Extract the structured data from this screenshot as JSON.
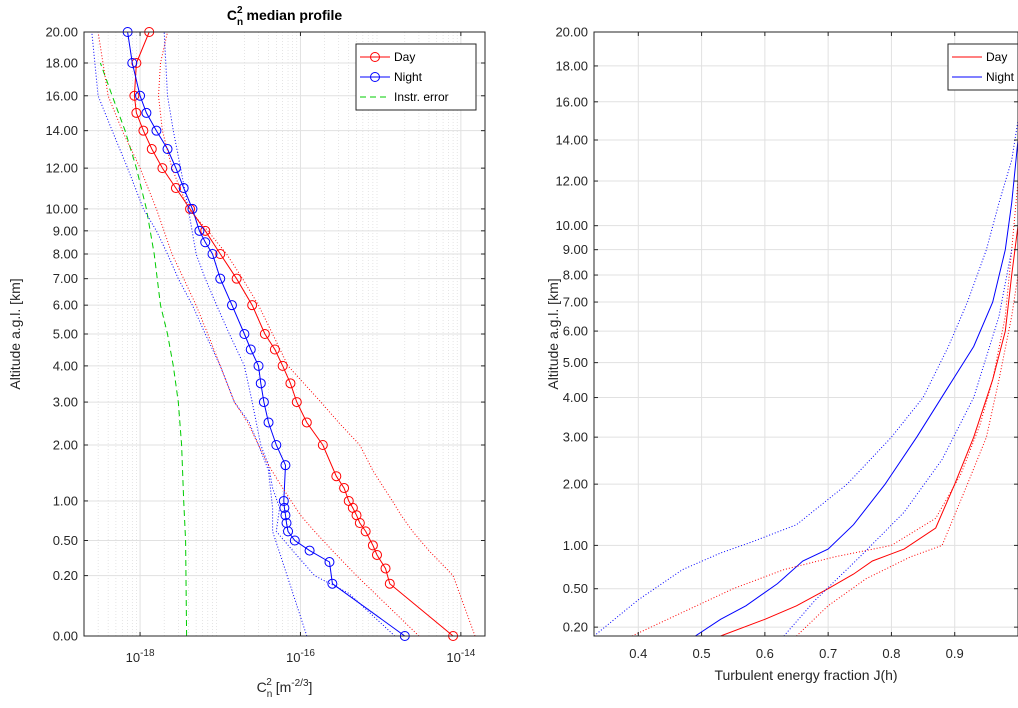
{
  "chart_data": [
    {
      "type": "line",
      "title": "C",
      "title_sub": "n",
      "title_sup": "2",
      "title_rest": "median profile",
      "xlabel": "C",
      "xlabel_sub": "n",
      "xlabel_sup": "2",
      "xlabel_rest": "[m",
      "xlabel_unit_sup": "-2/3",
      "xlabel_close": "]",
      "ylabel": "Altitude a.g.l. [km]",
      "xscale": "log",
      "yscale": "sqrt",
      "xlim": [
        2e-19,
        2e-14
      ],
      "ylim": [
        0,
        20
      ],
      "xticks": [
        1e-18,
        1e-16,
        1e-14
      ],
      "xtick_base": "10",
      "xtick_exps": [
        "-18",
        "-16",
        "-14"
      ],
      "yticks": [
        0,
        0.2,
        0.5,
        1,
        2,
        3,
        4,
        5,
        6,
        7,
        8,
        9,
        10,
        12,
        14,
        16,
        18,
        20
      ],
      "ytick_labels": [
        "0.00",
        "0.20",
        "0.50",
        "1.00",
        "2.00",
        "3.00",
        "4.00",
        "5.00",
        "6.00",
        "7.00",
        "8.00",
        "9.00",
        "10.00",
        "12.00",
        "14.00",
        "16.00",
        "18.00",
        "20.00"
      ],
      "grid": true,
      "legend": "top-right",
      "series": [
        {
          "name": "Day",
          "color": "#ff0000",
          "style": "solid",
          "marker": "circle",
          "x": [
            8e-15,
            1.3e-15,
            1.15e-15,
            9e-16,
            8e-16,
            6.5e-16,
            5.5e-16,
            5e-16,
            4.5e-16,
            4e-16,
            3.5e-16,
            2.8e-16,
            1.9e-16,
            1.2e-16,
            9e-17,
            7.5e-17,
            6e-17,
            4.8e-17,
            3.6e-17,
            2.5e-17,
            1.6e-17,
            1e-17,
            6.5e-18,
            4.2e-18,
            2.8e-18,
            1.9e-18,
            1.4e-18,
            1.1e-18,
            9e-19,
            8.5e-19,
            9e-19,
            1.3e-18
          ],
          "y": [
            0,
            0.15,
            0.25,
            0.36,
            0.45,
            0.6,
            0.7,
            0.8,
            0.9,
            1.0,
            1.2,
            1.4,
            2.0,
            2.5,
            3.0,
            3.5,
            4.0,
            4.5,
            5.0,
            6.0,
            7.0,
            8.0,
            9.0,
            10.0,
            11.0,
            12.0,
            13.0,
            14.0,
            15.0,
            16.0,
            18.0,
            20.0
          ]
        },
        {
          "name": "Night",
          "color": "#0000ff",
          "style": "solid",
          "marker": "circle",
          "x": [
            2e-15,
            2.5e-16,
            2.3e-16,
            1.3e-16,
            8.5e-17,
            7e-17,
            6.7e-17,
            6.5e-17,
            6.3e-17,
            6.2e-17,
            6.5e-17,
            5e-17,
            4e-17,
            3.5e-17,
            3.2e-17,
            3e-17,
            2.4e-17,
            2e-17,
            1.4e-17,
            1e-17,
            8e-18,
            6.5e-18,
            5.5e-18,
            4.5e-18,
            3.5e-18,
            2.8e-18,
            2.2e-18,
            1.6e-18,
            1.2e-18,
            1e-18,
            8e-19,
            7e-19
          ],
          "y": [
            0,
            0.15,
            0.3,
            0.4,
            0.5,
            0.6,
            0.7,
            0.8,
            0.9,
            1.0,
            1.6,
            2.0,
            2.5,
            3.0,
            3.5,
            4.0,
            4.5,
            5.0,
            6.0,
            7.0,
            8.0,
            8.5,
            9.0,
            10.0,
            11.0,
            12.0,
            13.0,
            14.0,
            15.0,
            16.0,
            18.0,
            20.0
          ]
        },
        {
          "name": "Instr. error",
          "color": "#00cc00",
          "style": "dashed",
          "marker": "none",
          "x": [
            3.8e-18,
            3.7e-18,
            3.5e-18,
            3.3e-18,
            3e-18,
            2.6e-18,
            2.2e-18,
            1.8e-18,
            1.5e-18,
            1.2e-18,
            9e-19,
            6.5e-19,
            4.5e-19,
            3.2e-19
          ],
          "y": [
            0,
            0.5,
            1,
            2,
            3,
            4,
            5,
            6,
            8,
            10,
            12,
            14,
            16,
            18
          ]
        },
        {
          "name": "",
          "color": "#ff0000",
          "style": "dotted",
          "marker": "none",
          "x": [
            1.5e-14,
            8e-15,
            4e-15,
            2.5e-15,
            1.8e-15,
            1.4e-15,
            1.1e-15,
            8e-16,
            5.5e-16,
            3e-16,
            1.8e-16,
            1.1e-16,
            7e-17,
            4.5e-17,
            3e-17,
            1.9e-17,
            1.2e-17,
            7e-18,
            4e-18,
            2.5e-18,
            1.9e-18,
            1.7e-18,
            1.8e-18,
            2.2e-18
          ],
          "y": [
            0,
            0.2,
            0.4,
            0.6,
            0.8,
            1.0,
            1.2,
            1.5,
            2.0,
            2.5,
            3.0,
            3.5,
            4.0,
            5.0,
            6.0,
            7.0,
            8.0,
            9.0,
            10.0,
            12.0,
            14.0,
            16.0,
            18.0,
            20.0
          ]
        },
        {
          "name": "",
          "color": "#ff0000",
          "style": "dotted",
          "marker": "none",
          "x": [
            3e-15,
            5e-16,
            2.5e-16,
            1.5e-16,
            1e-16,
            6e-17,
            4e-17,
            3e-17,
            2.2e-17,
            1.5e-17,
            1e-17,
            7e-18,
            5e-18,
            3.5e-18,
            2.5e-18,
            1.6e-18,
            1e-18,
            6e-19,
            4e-19,
            3e-19
          ],
          "y": [
            0,
            0.2,
            0.4,
            0.6,
            0.8,
            1.2,
            1.6,
            2.0,
            2.5,
            3.0,
            4.0,
            5.0,
            6.0,
            7.0,
            8.0,
            10.0,
            12.0,
            14.0,
            16.0,
            20.0
          ]
        },
        {
          "name": "",
          "color": "#0000ff",
          "style": "dotted",
          "marker": "none",
          "x": [
            1.5e-15,
            4e-16,
            1.5e-16,
            8e-17,
            5e-17,
            5.5e-17,
            4.5e-17,
            4e-17,
            3.2e-17,
            2.5e-17,
            2e-17,
            1.3e-17,
            9e-18,
            6.5e-18,
            5e-18,
            4e-18,
            3.2e-18,
            2.6e-18,
            2.2e-18,
            2e-18
          ],
          "y": [
            0,
            0.1,
            0.2,
            0.4,
            0.6,
            0.9,
            1.2,
            1.6,
            2.0,
            3.0,
            4.0,
            5.0,
            6.0,
            7.0,
            8.0,
            10.0,
            12.0,
            14.0,
            16.0,
            20.0
          ]
        },
        {
          "name": "",
          "color": "#0000ff",
          "style": "dotted",
          "marker": "none",
          "x": [
            1.2e-16,
            6e-17,
            4.5e-17,
            4.5e-17,
            4e-17,
            3e-17,
            2.3e-17,
            1.5e-17,
            1e-17,
            6.5e-18,
            4.5e-18,
            3e-18,
            2.2e-18,
            1.6e-18,
            1.1e-18,
            7e-19,
            4.5e-19,
            3e-19,
            2.5e-19
          ],
          "y": [
            0,
            0.3,
            0.6,
            0.9,
            1.5,
            2.0,
            2.5,
            3.0,
            4.0,
            5.0,
            6.0,
            7.0,
            8.0,
            9.0,
            10.0,
            12.0,
            14.0,
            16.0,
            20.0
          ]
        }
      ]
    },
    {
      "type": "line",
      "title": "",
      "xlabel": "Turbulent energy fraction J(h)",
      "ylabel": "Altitude a.g.l. [km]",
      "xscale": "linear",
      "yscale": "sqrt",
      "xlim": [
        0.33,
        1.0
      ],
      "ylim": [
        0.15,
        20
      ],
      "xticks": [
        0.4,
        0.5,
        0.6,
        0.7,
        0.8,
        0.9
      ],
      "xtick_labels": [
        "0.4",
        "0.5",
        "0.6",
        "0.7",
        "0.8",
        "0.9"
      ],
      "yticks": [
        0.2,
        0.5,
        1,
        2,
        3,
        4,
        5,
        6,
        7,
        8,
        9,
        10,
        12,
        14,
        16,
        18,
        20
      ],
      "ytick_labels": [
        "0.20",
        "0.50",
        "1.00",
        "2.00",
        "3.00",
        "4.00",
        "5.00",
        "6.00",
        "7.00",
        "8.00",
        "9.00",
        "10.00",
        "12.00",
        "14.00",
        "16.00",
        "18.00",
        "20.00"
      ],
      "grid": true,
      "legend": "top-right",
      "series": [
        {
          "name": "Day",
          "color": "#ff0000",
          "style": "solid",
          "x": [
            0.53,
            0.6,
            0.65,
            0.7,
            0.74,
            0.77,
            0.82,
            0.87,
            0.9,
            0.93,
            0.96,
            0.98,
            0.99,
            1.0
          ],
          "y": [
            0.15,
            0.25,
            0.35,
            0.5,
            0.65,
            0.8,
            0.95,
            1.25,
            2.0,
            3.0,
            4.5,
            6.0,
            8.0,
            10.0
          ]
        },
        {
          "name": "Night",
          "color": "#0000ff",
          "style": "solid",
          "x": [
            0.49,
            0.53,
            0.57,
            0.62,
            0.66,
            0.7,
            0.74,
            0.79,
            0.84,
            0.89,
            0.93,
            0.96,
            0.98,
            0.99,
            1.0
          ],
          "y": [
            0.15,
            0.25,
            0.35,
            0.55,
            0.8,
            0.95,
            1.3,
            2.0,
            3.0,
            4.3,
            5.5,
            7.0,
            9.0,
            11.0,
            14.0
          ]
        },
        {
          "name": "",
          "color": "#ff0000",
          "style": "dotted",
          "x": [
            0.39,
            0.47,
            0.55,
            0.63,
            0.71,
            0.8,
            0.87,
            0.91,
            0.94,
            0.96,
            0.98,
            0.99,
            1.0
          ],
          "y": [
            0.15,
            0.3,
            0.5,
            0.7,
            0.85,
            1.0,
            1.4,
            2.2,
            3.3,
            4.5,
            6.5,
            9.0,
            12.0
          ]
        },
        {
          "name": "",
          "color": "#ff0000",
          "style": "dotted",
          "x": [
            0.65,
            0.7,
            0.76,
            0.83,
            0.88,
            0.92,
            0.95,
            0.97,
            0.99,
            1.0
          ],
          "y": [
            0.15,
            0.35,
            0.6,
            0.85,
            1.0,
            2.0,
            3.0,
            4.5,
            6.5,
            8.0
          ]
        },
        {
          "name": "",
          "color": "#0000ff",
          "style": "dotted",
          "x": [
            0.33,
            0.4,
            0.47,
            0.53,
            0.58,
            0.65,
            0.73,
            0.8,
            0.85,
            0.89,
            0.92,
            0.95,
            0.97,
            0.99,
            1.0
          ],
          "y": [
            0.15,
            0.4,
            0.7,
            0.9,
            1.05,
            1.3,
            2.0,
            3.0,
            4.0,
            5.5,
            7.0,
            9.0,
            11.0,
            13.0,
            15.0
          ]
        },
        {
          "name": "",
          "color": "#0000ff",
          "style": "dotted",
          "x": [
            0.63,
            0.68,
            0.75,
            0.82,
            0.88,
            0.93,
            0.97,
            0.99
          ],
          "y": [
            0.15,
            0.4,
            0.85,
            1.5,
            2.5,
            4.0,
            6.5,
            9.0
          ]
        }
      ]
    }
  ]
}
